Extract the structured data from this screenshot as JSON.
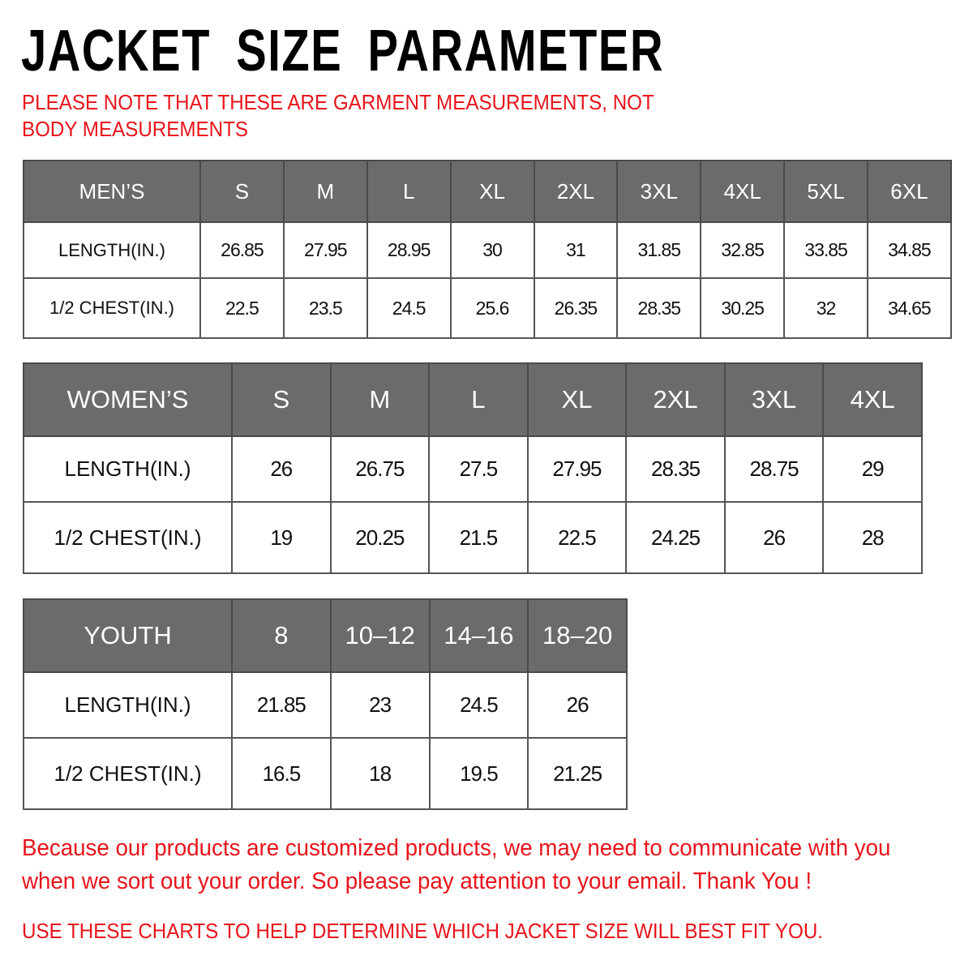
{
  "title": "JACKET SIZE PARAMETER",
  "note": "PLEASE NOTE THAT THESE ARE GARMENT MEASUREMENTS, NOT BODY MEASUREMENTS",
  "tables": [
    {
      "name": "mens",
      "header": [
        "MEN’S",
        "S",
        "M",
        "L",
        "XL",
        "2XL",
        "3XL",
        "4XL",
        "5XL",
        "6XL"
      ],
      "rows": [
        [
          "LENGTH(IN.)",
          "26.85",
          "27.95",
          "28.95",
          "30",
          "31",
          "31.85",
          "32.85",
          "33.85",
          "34.85"
        ],
        [
          "1/2 CHEST(IN.)",
          "22.5",
          "23.5",
          "24.5",
          "25.6",
          "26.35",
          "28.35",
          "30.25",
          "32",
          "34.65"
        ]
      ]
    },
    {
      "name": "womens",
      "header": [
        "WOMEN’S",
        "S",
        "M",
        "L",
        "XL",
        "2XL",
        "3XL",
        "4XL"
      ],
      "rows": [
        [
          "LENGTH(IN.)",
          "26",
          "26.75",
          "27.5",
          "27.95",
          "28.35",
          "28.75",
          "29"
        ],
        [
          "1/2 CHEST(IN.)",
          "19",
          "20.25",
          "21.5",
          "22.5",
          "24.25",
          "26",
          "28"
        ]
      ]
    },
    {
      "name": "youth",
      "header": [
        "YOUTH",
        "8",
        "10–12",
        "14–16",
        "18–20"
      ],
      "rows": [
        [
          "LENGTH(IN.)",
          "21.85",
          "23",
          "24.5",
          "26"
        ],
        [
          "1/2 CHEST(IN.)",
          "16.5",
          "18",
          "19.5",
          "21.25"
        ]
      ]
    }
  ],
  "footer": {
    "line1": "Because our products are customized products, we may need to communicate with you",
    "line2": "when we sort out your order. So please pay attention to your email. Thank You !",
    "line3": "USE THESE CHARTS TO HELP DETERMINE WHICH JACKET SIZE WILL BEST FIT YOU."
  },
  "colors": {
    "header_bg": "#6b6b6b",
    "accent_red": "#e8141b"
  }
}
